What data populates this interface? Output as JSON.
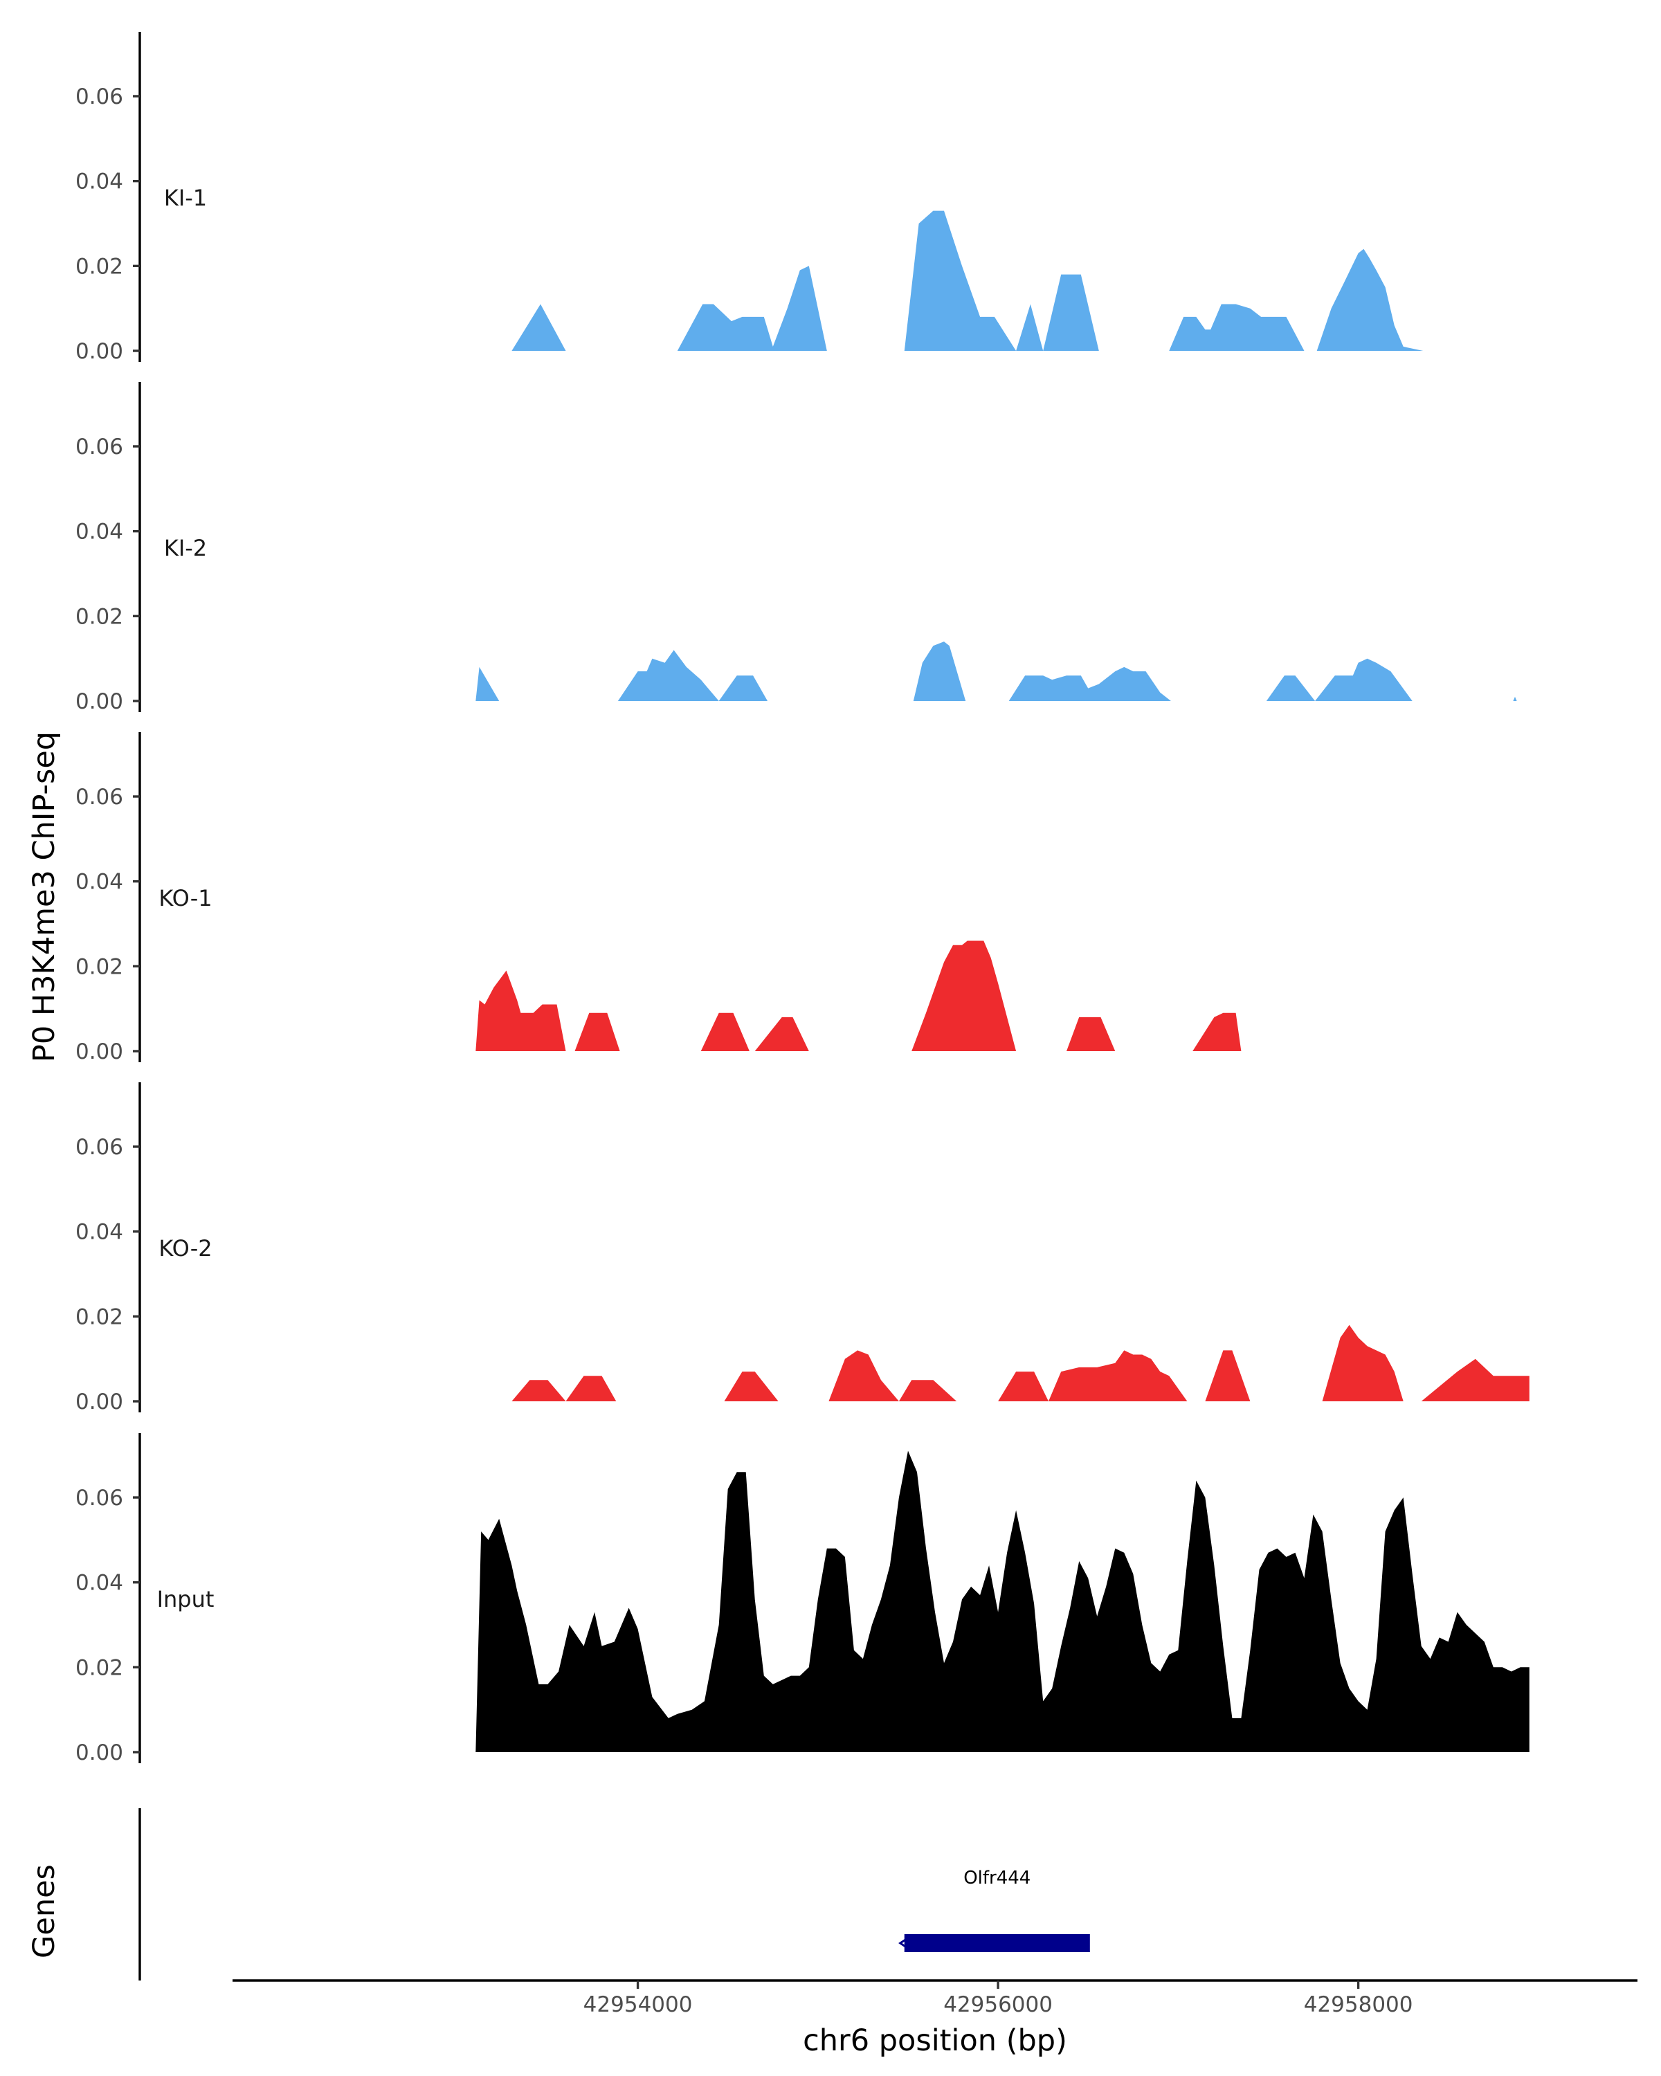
{
  "chart_data": {
    "type": "area",
    "ylabel": "P0 H3K4me3 ChIP-seq",
    "xlabel": "chr6 position (bp)",
    "genes_label": "Genes",
    "xlim": [
      42951750,
      42959550
    ],
    "ylim": [
      0,
      0.075
    ],
    "y_ticks": [
      0,
      0.02,
      0.04,
      0.06
    ],
    "y_tick_labels": [
      "0.00",
      "0.02",
      "0.04",
      "0.06"
    ],
    "x_ticks": [
      42954000,
      42956000,
      42958000
    ],
    "x_tick_labels": [
      "42954000",
      "42956000",
      "42958000"
    ],
    "colors": {
      "KI": "#5FADED",
      "KO": "#EE2B2E",
      "Input": "#000000",
      "gene": "#00008B"
    },
    "tracks": [
      {
        "name": "KI-1",
        "color": "#5FADED",
        "x": [
          42953300,
          42953460,
          42953600,
          42953600,
          42954220,
          42954360,
          42954420,
          42954520,
          42954580,
          42954700,
          42954750,
          42954830,
          42954900,
          42954950,
          42955050,
          42955050,
          42955480,
          42955560,
          42955640,
          42955700,
          42955800,
          42955900,
          42955900,
          42955980,
          42956100,
          42956180,
          42956250,
          42956250,
          42956350,
          42956460,
          42956560,
          42956630,
          42956630,
          42956950,
          42957030,
          42957100,
          42957150,
          42957180,
          42957240,
          42957320,
          42957400,
          42957460,
          42957520,
          42957600,
          42957700,
          42957770,
          42957770,
          42957850,
          42957920,
          42958000,
          42958030,
          42958060,
          42958100,
          42958150,
          42958200,
          42958250,
          42958360
        ],
        "y": [
          0,
          0.011,
          0,
          0,
          0,
          0.011,
          0.011,
          0.007,
          0.008,
          0.008,
          0.001,
          0.01,
          0.019,
          0.02,
          0,
          0,
          0,
          0.03,
          0.033,
          0.033,
          0.02,
          0.008,
          0.008,
          0.008,
          0,
          0.011,
          0,
          0,
          0.018,
          0.018,
          0,
          0,
          0,
          0,
          0.008,
          0.008,
          0.005,
          0.005,
          0.011,
          0.011,
          0.01,
          0.008,
          0.008,
          0.008,
          0,
          0,
          0,
          0.01,
          0.016,
          0.023,
          0.024,
          0.022,
          0.019,
          0.015,
          0.006,
          0.001,
          0
        ]
      },
      {
        "name": "KI-2",
        "color": "#5FADED",
        "x": [
          42953100,
          42953120,
          42953230,
          42953230,
          42953890,
          42954000,
          42954050,
          42954080,
          42954150,
          42954200,
          42954270,
          42954350,
          42954450,
          42954450,
          42954550,
          42954640,
          42954720,
          42954720,
          42955530,
          42955580,
          42955640,
          42955700,
          42955730,
          42955820,
          42955820,
          42956060,
          42956150,
          42956250,
          42956300,
          42956380,
          42956460,
          42956500,
          42956560,
          42956650,
          42956700,
          42956750,
          42956820,
          42956900,
          42956960,
          42956960,
          42957490,
          42957590,
          42957650,
          42957760,
          42957760,
          42957870,
          42957970,
          42958000,
          42958050,
          42958100,
          42958180,
          42958300,
          42958860,
          42958870,
          42958880
        ],
        "y": [
          0,
          0.008,
          0,
          0,
          0,
          0.007,
          0.007,
          0.01,
          0.009,
          0.012,
          0.008,
          0.005,
          0,
          0,
          0.006,
          0.006,
          0,
          0,
          0,
          0.009,
          0.013,
          0.014,
          0.013,
          0,
          0,
          0,
          0.006,
          0.006,
          0.005,
          0.006,
          0.006,
          0.003,
          0.004,
          0.007,
          0.008,
          0.007,
          0.007,
          0.002,
          0,
          0,
          0,
          0.006,
          0.006,
          0,
          0,
          0.006,
          0.006,
          0.009,
          0.01,
          0.009,
          0.007,
          0,
          0,
          0.001,
          0
        ]
      },
      {
        "name": "KO-1",
        "color": "#EE2B2E",
        "x": [
          42953100,
          42953120,
          42953150,
          42953200,
          42953270,
          42953330,
          42953350,
          42953420,
          42953470,
          42953550,
          42953600,
          42953600,
          42953650,
          42953730,
          42953830,
          42953900,
          42953900,
          42954350,
          42954450,
          42954530,
          42954620,
          42954650,
          42954650,
          42954800,
          42954860,
          42954950,
          42955000,
          42955000,
          42955520,
          42955600,
          42955700,
          42955750,
          42955800,
          42955830,
          42955860,
          42955920,
          42955960,
          42956000,
          42956100,
          42956100,
          42956380,
          42956450,
          42956570,
          42956650,
          42956650,
          42957080,
          42957200,
          42957250,
          42957320,
          42957350,
          42957350
        ],
        "y": [
          0,
          0.012,
          0.011,
          0.015,
          0.019,
          0.012,
          0.009,
          0.009,
          0.011,
          0.011,
          0,
          0,
          0,
          0.009,
          0.009,
          0,
          0,
          0,
          0.009,
          0.009,
          0,
          0,
          0,
          0.008,
          0.008,
          0,
          0,
          0,
          0,
          0.009,
          0.021,
          0.025,
          0.025,
          0.026,
          0.026,
          0.026,
          0.022,
          0.016,
          0,
          0,
          0,
          0.008,
          0.008,
          0,
          0,
          0,
          0.008,
          0.009,
          0.009,
          0,
          0
        ]
      },
      {
        "name": "KO-2",
        "color": "#EE2B2E",
        "x": [
          42953300,
          42953400,
          42953500,
          42953600,
          42953600,
          42953700,
          42953800,
          42953880,
          42953880,
          42954480,
          42954580,
          42954650,
          42954780,
          42954780,
          42955060,
          42955150,
          42955220,
          42955280,
          42955350,
          42955450,
          42955450,
          42955520,
          42955640,
          42955770,
          42955770,
          42956000,
          42956100,
          42956200,
          42956280,
          42956280,
          42956350,
          42956450,
          42956550,
          42956650,
          42956700,
          42956750,
          42956800,
          42956850,
          42956900,
          42956950,
          42957050,
          42957050,
          42957150,
          42957250,
          42957300,
          42957400,
          42957400,
          42957800,
          42957900,
          42957950,
          42958000,
          42958050,
          42958100,
          42958150,
          42958200,
          42958250,
          42958350,
          42958350,
          42958550,
          42958650,
          42958750,
          42958800,
          42958950,
          42958950
        ],
        "y": [
          0,
          0.005,
          0.005,
          0,
          0,
          0.006,
          0.006,
          0,
          0,
          0,
          0.007,
          0.007,
          0,
          0,
          0,
          0.01,
          0.012,
          0.011,
          0.005,
          0,
          0,
          0.005,
          0.005,
          0,
          0,
          0,
          0.007,
          0.007,
          0,
          0,
          0.007,
          0.008,
          0.008,
          0.009,
          0.012,
          0.011,
          0.011,
          0.01,
          0.007,
          0.006,
          0,
          0,
          0,
          0.012,
          0.012,
          0,
          0,
          0,
          0.015,
          0.018,
          0.015,
          0.013,
          0.012,
          0.011,
          0.007,
          0,
          0,
          0,
          0.007,
          0.01,
          0.006,
          0.006,
          0.006,
          0
        ]
      },
      {
        "name": "Input",
        "color": "#000000",
        "x": [
          42953100,
          42953130,
          42953170,
          42953230,
          42953300,
          42953330,
          42953380,
          42953450,
          42953500,
          42953560,
          42953620,
          42953700,
          42953760,
          42953800,
          42953870,
          42953950,
          42954000,
          42954080,
          42954170,
          42954220,
          42954300,
          42954370,
          42954450,
          42954500,
          42954550,
          42954600,
          42954650,
          42954700,
          42954750,
          42954800,
          42954850,
          42954900,
          42954950,
          42955000,
          42955050,
          42955100,
          42955150,
          42955200,
          42955250,
          42955300,
          42955350,
          42955400,
          42955450,
          42955500,
          42955550,
          42955600,
          42955650,
          42955700,
          42955750,
          42955800,
          42955850,
          42955900,
          42955950,
          42956000,
          42956050,
          42956100,
          42956150,
          42956200,
          42956250,
          42956300,
          42956350,
          42956400,
          42956450,
          42956500,
          42956550,
          42956600,
          42956650,
          42956700,
          42956750,
          42956800,
          42956850,
          42956900,
          42956950,
          42957000,
          42957050,
          42957100,
          42957150,
          42957200,
          42957250,
          42957300,
          42957350,
          42957400,
          42957450,
          42957500,
          42957550,
          42957600,
          42957650,
          42957700,
          42957750,
          42957800,
          42957850,
          42957900,
          42957950,
          42958000,
          42958050,
          42958100,
          42958150,
          42958200,
          42958250,
          42958300,
          42958350,
          42958400,
          42958450,
          42958500,
          42958550,
          42958600,
          42958650,
          42958700,
          42958750,
          42958800,
          42958850,
          42958900,
          42958950,
          42958950
        ],
        "y": [
          0,
          0.052,
          0.05,
          0.055,
          0.044,
          0.038,
          0.03,
          0.016,
          0.016,
          0.019,
          0.03,
          0.025,
          0.033,
          0.025,
          0.026,
          0.034,
          0.029,
          0.013,
          0.008,
          0.009,
          0.01,
          0.012,
          0.03,
          0.062,
          0.066,
          0.066,
          0.036,
          0.018,
          0.016,
          0.017,
          0.018,
          0.018,
          0.02,
          0.036,
          0.048,
          0.048,
          0.046,
          0.024,
          0.022,
          0.03,
          0.036,
          0.044,
          0.06,
          0.071,
          0.066,
          0.048,
          0.033,
          0.021,
          0.026,
          0.036,
          0.039,
          0.037,
          0.044,
          0.033,
          0.047,
          0.057,
          0.047,
          0.035,
          0.012,
          0.015,
          0.025,
          0.034,
          0.045,
          0.041,
          0.032,
          0.039,
          0.048,
          0.047,
          0.042,
          0.03,
          0.021,
          0.019,
          0.023,
          0.024,
          0.045,
          0.064,
          0.06,
          0.044,
          0.025,
          0.008,
          0.008,
          0.024,
          0.043,
          0.047,
          0.048,
          0.046,
          0.047,
          0.041,
          0.056,
          0.052,
          0.036,
          0.021,
          0.015,
          0.012,
          0.01,
          0.022,
          0.052,
          0.057,
          0.06,
          0.042,
          0.025,
          0.022,
          0.027,
          0.026,
          0.033,
          0.03,
          0.028,
          0.026,
          0.02,
          0.02,
          0.019,
          0.02,
          0.02,
          0
        ]
      }
    ],
    "genes": [
      {
        "name": "Olfr444",
        "start": 42955480,
        "end": 42956510,
        "strand": "-"
      }
    ]
  }
}
